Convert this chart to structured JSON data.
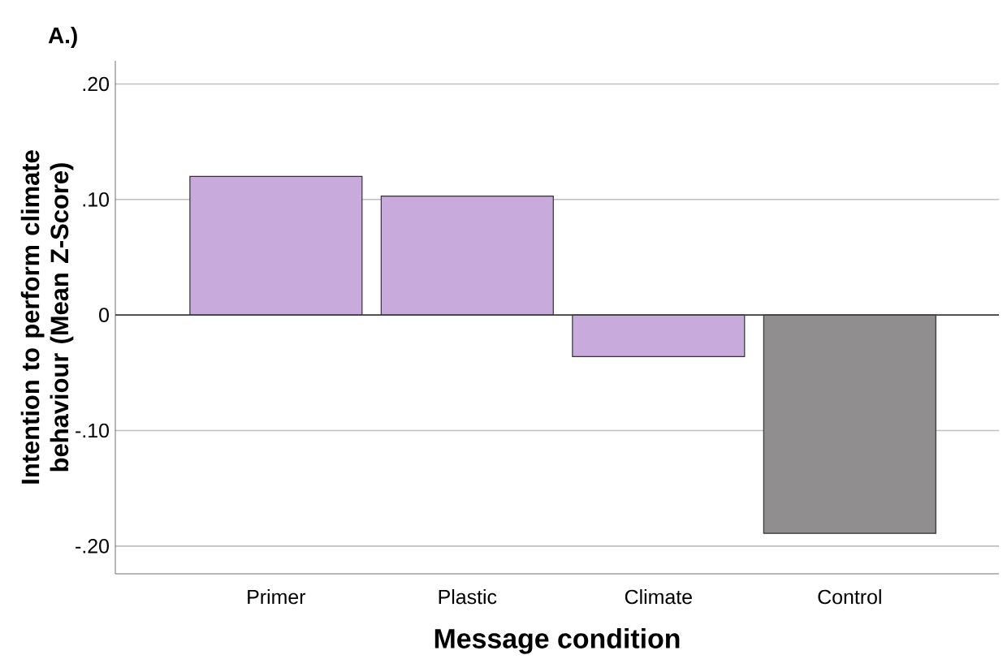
{
  "chart_data": {
    "type": "bar",
    "title": "A.)",
    "xlabel": "Message condition",
    "ylabel": "Intention to perform  climate behaviour (Mean Z-Score)",
    "categories": [
      "Primer",
      "Plastic",
      "Climate",
      "Control"
    ],
    "values": [
      0.12,
      0.103,
      -0.036,
      -0.189
    ],
    "colors": [
      "#c8aadc",
      "#c8aadc",
      "#c8aadc",
      "#918e8f"
    ],
    "ylim": [
      -0.224,
      0.22
    ],
    "yticks": [
      {
        "value": -0.2,
        "label": "-.20"
      },
      {
        "value": -0.1,
        "label": "-.10"
      },
      0,
      {
        "value": 0.1,
        "label": ".10"
      },
      {
        "value": 0.2,
        "label": ".20"
      }
    ],
    "grid": "y"
  }
}
